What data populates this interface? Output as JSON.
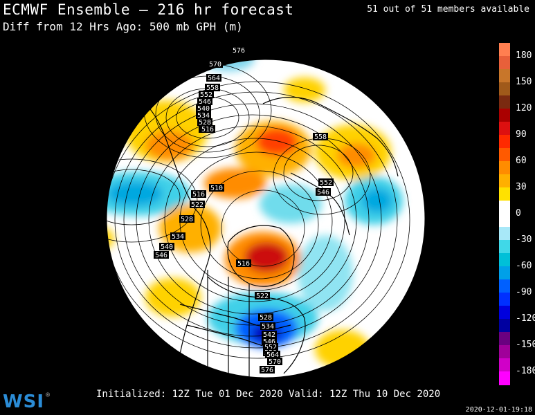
{
  "header": {
    "title": "ECMWF Ensemble — 216 hr forecast",
    "subtitle": "Diff from 12 Hrs Ago: 500 mb GPH (m)",
    "members": "51 out of 51 members available"
  },
  "footer": {
    "initialized": "Initialized: 12Z Tue 01 Dec 2020",
    "valid": "Valid: 12Z Thu 10 Dec 2020",
    "timestamp": "2020-12-01-19:18"
  },
  "logo": {
    "text": "WSI",
    "mark": "®"
  },
  "colorbar": {
    "segments": [
      {
        "value": 195,
        "color": "#ff7f50"
      },
      {
        "value": 180,
        "color": "#e8603a"
      },
      {
        "value": 165,
        "color": "#c8762a"
      },
      {
        "value": 150,
        "color": "#a05a1a"
      },
      {
        "value": 135,
        "color": "#7a2a10"
      },
      {
        "value": 120,
        "color": "#aa0000"
      },
      {
        "value": 105,
        "color": "#dd1010"
      },
      {
        "value": 90,
        "color": "#ff2a00"
      },
      {
        "value": 75,
        "color": "#ff5a00"
      },
      {
        "value": 60,
        "color": "#ff8c00"
      },
      {
        "value": 45,
        "color": "#ffb000"
      },
      {
        "value": 30,
        "color": "#ffe100"
      },
      {
        "value": 15,
        "color": "#ffffff"
      },
      {
        "value": 0,
        "color": "#ffffff"
      },
      {
        "value": -15,
        "color": "#a8e8f8"
      },
      {
        "value": -30,
        "color": "#40d8e8"
      },
      {
        "value": -45,
        "color": "#00c0d8"
      },
      {
        "value": -60,
        "color": "#00a0e8"
      },
      {
        "value": -75,
        "color": "#0060ff"
      },
      {
        "value": -90,
        "color": "#0030ff"
      },
      {
        "value": -105,
        "color": "#0000dd"
      },
      {
        "value": -120,
        "color": "#0000a0"
      },
      {
        "value": -135,
        "color": "#6a0080"
      },
      {
        "value": -150,
        "color": "#a0009a"
      },
      {
        "value": -165,
        "color": "#d000c8"
      },
      {
        "value": -180,
        "color": "#ff00ff"
      }
    ],
    "labels": [
      "180",
      "150",
      "120",
      "90",
      "60",
      "30",
      "0",
      "-30",
      "-60",
      "-90",
      "-120",
      "-150",
      "-180"
    ]
  },
  "height_labels": [
    "576",
    "570",
    "564",
    "558",
    "552",
    "546",
    "540",
    "534",
    "528",
    "522",
    "516",
    "510",
    "516",
    "522",
    "528",
    "534",
    "540",
    "546",
    "558",
    "552",
    "546",
    "516",
    "522",
    "528",
    "534",
    "542",
    "546",
    "552",
    "558",
    "564",
    "570",
    "576"
  ]
}
